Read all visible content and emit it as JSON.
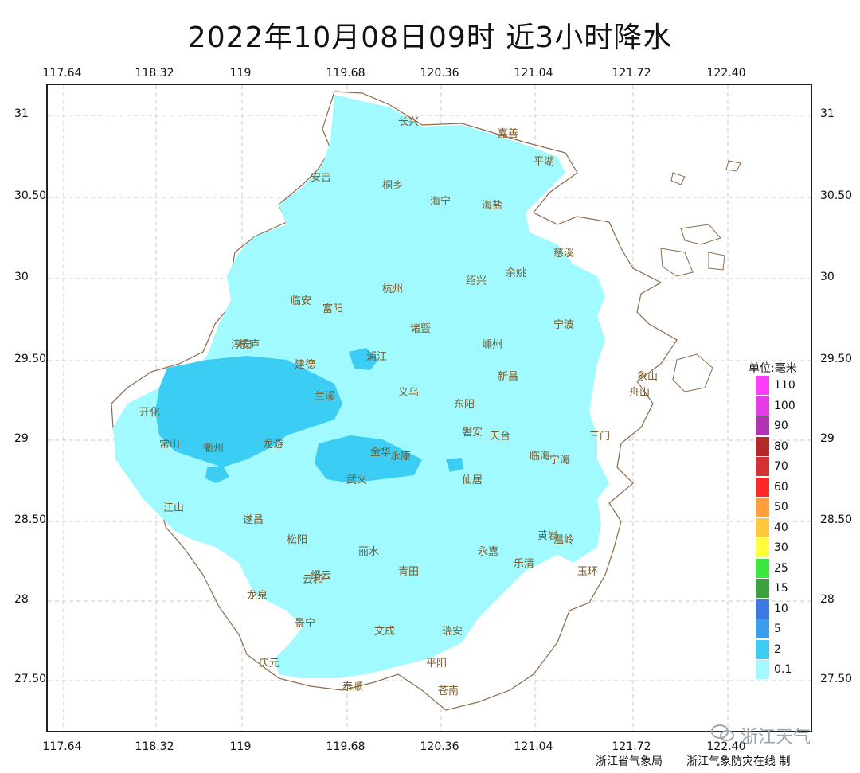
{
  "title": "2022年10月08日09时  近3小时降水",
  "axes": {
    "lon_ticks": [
      "117.64",
      "118.32",
      "119",
      "119.68",
      "120.36",
      "121.04",
      "121.72",
      "122.40"
    ],
    "lat_ticks": [
      "31",
      "30.50",
      "30",
      "29.50",
      "29",
      "28.50",
      "28",
      "27.50"
    ]
  },
  "legend": {
    "title": "单位:毫米",
    "levels": [
      {
        "label": "110",
        "color": "#ff3cff"
      },
      {
        "label": "100",
        "color": "#e63ce6"
      },
      {
        "label": "90",
        "color": "#b432b4"
      },
      {
        "label": "80",
        "color": "#b42828"
      },
      {
        "label": "70",
        "color": "#d23232"
      },
      {
        "label": "60",
        "color": "#ff2828"
      },
      {
        "label": "50",
        "color": "#ffa03c"
      },
      {
        "label": "40",
        "color": "#ffc83c"
      },
      {
        "label": "30",
        "color": "#ffff3c"
      },
      {
        "label": "25",
        "color": "#3ce63c"
      },
      {
        "label": "15",
        "color": "#3ca03c"
      },
      {
        "label": "10",
        "color": "#3c78e6"
      },
      {
        "label": "5",
        "color": "#3c9cf0"
      },
      {
        "label": "2",
        "color": "#3ccdf5"
      },
      {
        "label": "0.1",
        "color": "#a0faff"
      }
    ]
  },
  "places": [
    "长兴",
    "嘉善",
    "平湖",
    "安吉",
    "桐乡",
    "海宁",
    "海盐",
    "慈溪",
    "余姚",
    "杭州",
    "临安",
    "富阳",
    "桐庐",
    "诸暨",
    "嵊州",
    "绍兴",
    "淳安",
    "建德",
    "浦江",
    "兰溪",
    "义乌",
    "东阳",
    "新昌",
    "天台",
    "开化",
    "常山",
    "衢州",
    "龙游",
    "金华",
    "武义",
    "永康",
    "磐安",
    "仙居",
    "临海",
    "三门",
    "江山",
    "遂昌",
    "松阳",
    "缙云",
    "丽水",
    "青田",
    "永嘉",
    "黄岩",
    "温岭",
    "玉环",
    "乐清",
    "龙泉",
    "云和",
    "景宁",
    "文成",
    "瑞安",
    "平阳",
    "庆元",
    "泰顺",
    "苍南",
    "宁波",
    "象山",
    "宁海",
    "舟山"
  ],
  "footer": {
    "left": "浙江省气象局",
    "right": "浙江气象防灾在线 制"
  },
  "watermark": "浙江天气"
}
